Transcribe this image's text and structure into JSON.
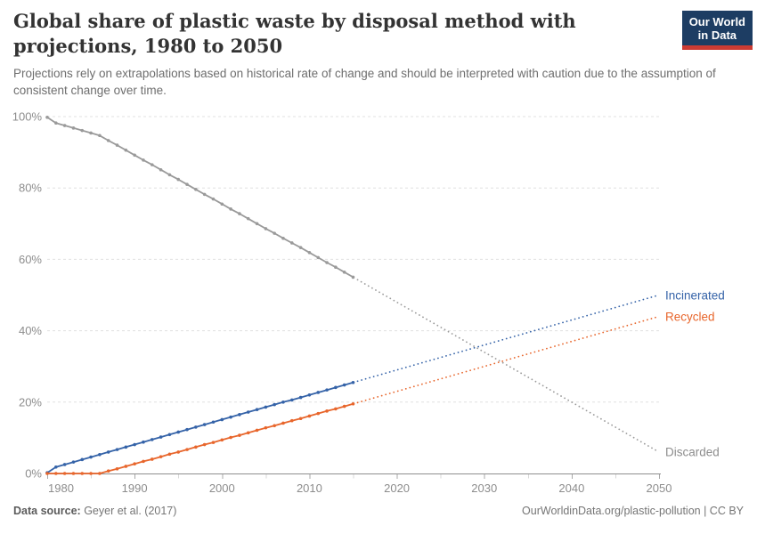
{
  "header": {
    "title": "Global share of plastic waste by disposal method with projections, 1980 to 2050",
    "subtitle": "Projections rely on extrapolations based on historical rate of change and should be interpreted with caution due to the assumption of consistent change over time."
  },
  "logo": {
    "line1": "Our World",
    "line2": "in Data",
    "bg_color": "#1d3d63",
    "accent_color": "#cc3b33"
  },
  "footer": {
    "source_label": "Data source:",
    "source_value": " Geyer et al. (2017)",
    "right_text": "OurWorldinData.org/plastic-pollution | CC BY"
  },
  "chart_data": {
    "type": "line",
    "title": "Global share of plastic waste by disposal method with projections, 1980 to 2050",
    "xlabel": "",
    "ylabel": "",
    "x_domain": [
      1980,
      2050
    ],
    "y_domain": [
      0,
      100
    ],
    "x_ticks": [
      1980,
      1990,
      2000,
      2010,
      2020,
      2030,
      2040,
      2050
    ],
    "x_minor_ticks": [
      1985,
      1995,
      2005,
      2015,
      2025,
      2035,
      2045
    ],
    "y_ticks": [
      0,
      20,
      40,
      60,
      80,
      100
    ],
    "y_tick_suffix": "%",
    "grid": true,
    "legend_position": "right-end-labels",
    "projection_note": "solid = historical (1980-2015), dotted = projection (2015-2050)",
    "series": [
      {
        "name": "Discarded",
        "color": "#9a9a9a",
        "label_color": "#8d8d8d",
        "historical": {
          "start_year": 1980,
          "end_year": 2015,
          "values": [
            99.8,
            98.2,
            97.5,
            96.8,
            96.1,
            95.4,
            94.7,
            93.3,
            92.0,
            90.6,
            89.2,
            87.8,
            86.5,
            85.1,
            83.7,
            82.4,
            81.0,
            79.6,
            78.2,
            76.9,
            75.5,
            74.1,
            72.8,
            71.4,
            70.0,
            68.6,
            67.3,
            65.9,
            64.6,
            63.3,
            61.9,
            60.5,
            59.1,
            57.8,
            56.4,
            55.0
          ]
        },
        "projection": {
          "years": [
            2015,
            2050
          ],
          "values": [
            55.0,
            6.0
          ]
        }
      },
      {
        "name": "Incinerated",
        "color": "#3563a8",
        "label_color": "#3563a8",
        "historical": {
          "start_year": 1980,
          "end_year": 2015,
          "values": [
            0.2,
            1.8,
            2.5,
            3.2,
            3.9,
            4.6,
            5.3,
            6.0,
            6.7,
            7.4,
            8.1,
            8.8,
            9.5,
            10.2,
            10.9,
            11.6,
            12.3,
            13.0,
            13.7,
            14.4,
            15.1,
            15.8,
            16.5,
            17.2,
            17.9,
            18.6,
            19.3,
            20.0,
            20.6,
            21.3,
            22.0,
            22.7,
            23.4,
            24.1,
            24.8,
            25.5
          ]
        },
        "projection": {
          "years": [
            2015,
            2050
          ],
          "values": [
            25.5,
            50.0
          ]
        }
      },
      {
        "name": "Recycled",
        "color": "#e8662c",
        "label_color": "#e8662c",
        "historical": {
          "start_year": 1980,
          "end_year": 2015,
          "values": [
            0,
            0,
            0,
            0,
            0,
            0,
            0,
            0.7,
            1.3,
            2.0,
            2.7,
            3.4,
            4.0,
            4.7,
            5.4,
            6.0,
            6.7,
            7.4,
            8.1,
            8.7,
            9.4,
            10.1,
            10.7,
            11.4,
            12.1,
            12.8,
            13.4,
            14.1,
            14.8,
            15.4,
            16.1,
            16.8,
            17.5,
            18.1,
            18.8,
            19.5
          ]
        },
        "projection": {
          "years": [
            2015,
            2050
          ],
          "values": [
            19.5,
            44.0
          ]
        }
      }
    ]
  }
}
